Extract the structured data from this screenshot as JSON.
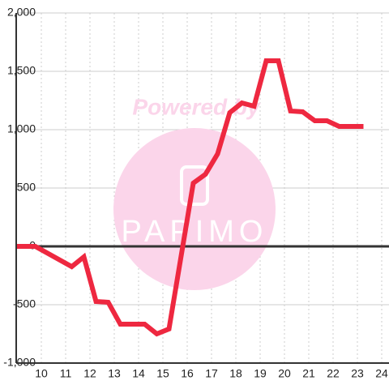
{
  "chart_data": {
    "type": "line",
    "watermark": [
      "Powered by",
      "PAPIMO"
    ],
    "x": [
      9,
      9.75,
      11.25,
      11.75,
      12.25,
      12.75,
      13.25,
      14.25,
      14.75,
      15.25,
      16.25,
      16.75,
      17.25,
      17.75,
      18.25,
      18.75,
      19.25,
      19.75,
      20.25,
      20.75,
      21.25,
      21.75,
      22.25,
      23.25
    ],
    "series": [
      {
        "color": "#ee2840",
        "values": [
          0,
          0,
          -174,
          -90,
          -472,
          -479,
          -667,
          -667,
          -750,
          -708,
          542,
          618,
          792,
          1146,
          1229,
          1201,
          1590,
          1590,
          1160,
          1153,
          1076,
          1076,
          1028,
          1028
        ]
      }
    ],
    "xlim": [
      9,
      24.3
    ],
    "xticks": [
      10,
      11,
      12,
      13,
      14,
      15,
      16,
      17,
      18,
      19,
      20,
      21,
      22,
      23,
      24
    ],
    "ylim": [
      -1000,
      2000
    ],
    "yticks": [
      {
        "value": -1000,
        "label": "-1,000"
      },
      -500,
      0,
      500,
      {
        "value": 1000,
        "label": "1,000"
      },
      {
        "value": 1500,
        "label": "1,500"
      },
      {
        "value": 2000,
        "label": "2,000"
      }
    ],
    "grid": true
  }
}
